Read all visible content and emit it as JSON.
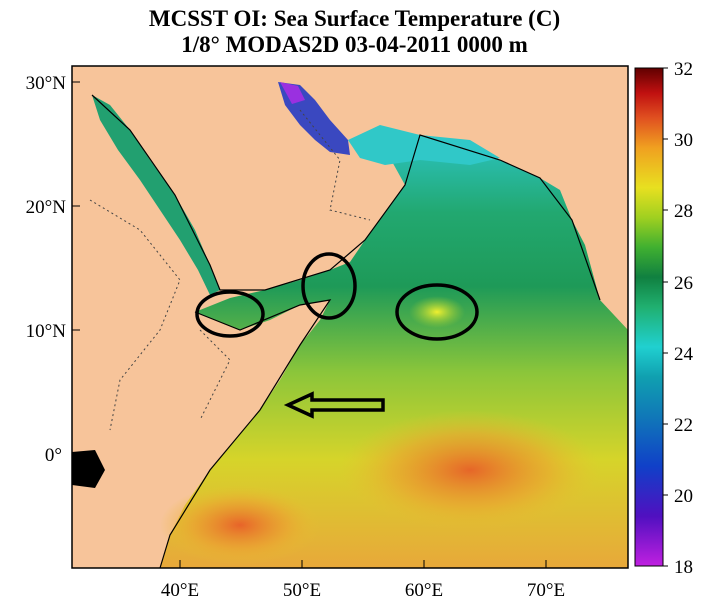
{
  "title": {
    "line1": "MCSST OI:  Sea Surface Temperature (C)",
    "line2": "1/8° MODAS2D 03-04-2011 0000 m"
  },
  "map": {
    "region": "Arabian Sea / Western Indian Ocean",
    "lon_range": [
      32,
      77
    ],
    "lat_range": [
      -9,
      31
    ],
    "lat_ticks": [
      "30°N",
      "20°N",
      "10°N",
      "0°"
    ],
    "lon_ticks": [
      "40°E",
      "50°E",
      "60°E",
      "70°E"
    ],
    "land_color": "#f7c49a",
    "annotations": [
      {
        "shape": "ellipse",
        "label": "Gulf of Aden west"
      },
      {
        "shape": "ellipse",
        "label": "Gulf of Aden east / Socotra"
      },
      {
        "shape": "ellipse",
        "label": "central Arabian Sea warm spot"
      },
      {
        "shape": "arrow",
        "label": "westward arrow toward Somali coast"
      }
    ]
  },
  "colorbar": {
    "min": 18,
    "max": 32,
    "labels": [
      "32",
      "30",
      "28",
      "26",
      "24",
      "22",
      "20",
      "18"
    ],
    "colors": [
      "#c020e0",
      "#4020c0",
      "#1060c0",
      "#10a0a8",
      "#20c0c0",
      "#18a050",
      "#40b030",
      "#a0d020",
      "#e8e020",
      "#f0a020",
      "#e05020",
      "#c01010",
      "#600000"
    ]
  }
}
